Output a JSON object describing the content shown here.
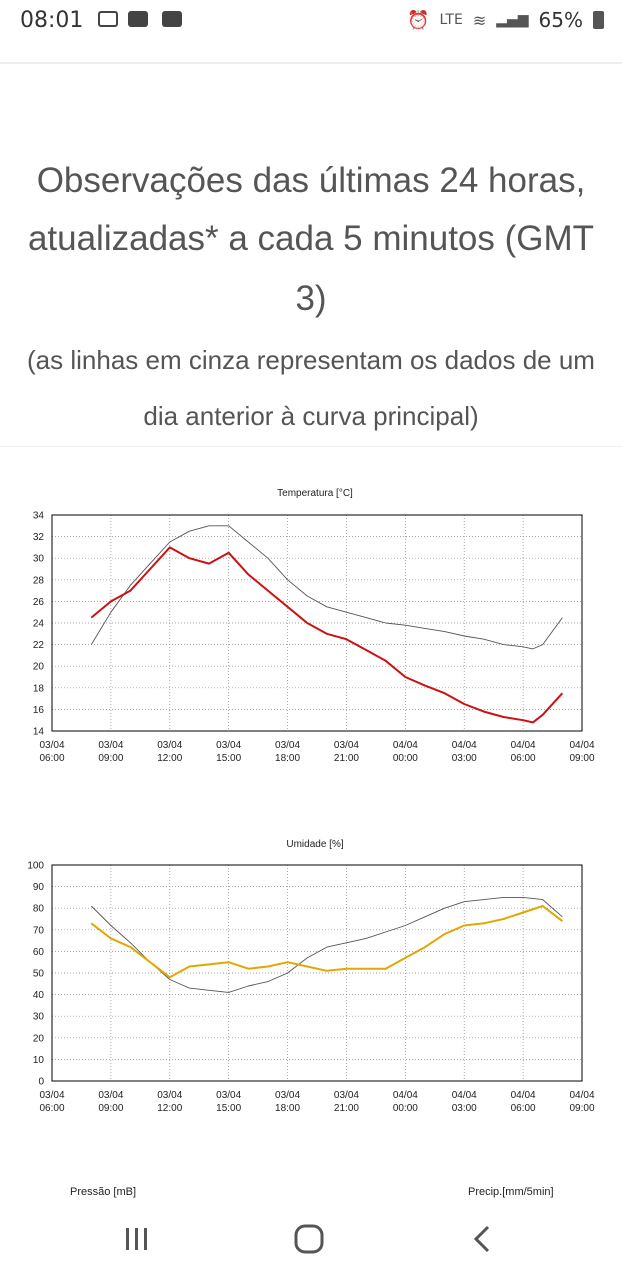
{
  "status_bar": {
    "time": "08:01",
    "lte_label": "LTE",
    "battery": "65%",
    "icons": [
      "calendar-icon",
      "youtube-icon",
      "youtube-icon",
      "alarm-icon",
      "volte-icon",
      "wifi-icon",
      "signal-icon",
      "battery-icon"
    ]
  },
  "header": {
    "title_line1": "Observações das últimas 24 horas,",
    "title_line2": "atualizadas* a cada 5 minutos (GMT",
    "title_line3": "3)",
    "note_line1": "(as linhas em cinza representam os dados de um",
    "note_line2": "dia anterior à curva principal)"
  },
  "colors": {
    "temperature": "#cc1111",
    "humidity": "#e0a800",
    "previous_day": "#555555",
    "grid": "#888888"
  },
  "x_ticks": [
    [
      "03/04",
      "06:00"
    ],
    [
      "03/04",
      "09:00"
    ],
    [
      "03/04",
      "12:00"
    ],
    [
      "03/04",
      "15:00"
    ],
    [
      "03/04",
      "18:00"
    ],
    [
      "03/04",
      "21:00"
    ],
    [
      "04/04",
      "00:00"
    ],
    [
      "04/04",
      "03:00"
    ],
    [
      "04/04",
      "06:00"
    ],
    [
      "04/04",
      "09:00"
    ]
  ],
  "chart_data": [
    {
      "type": "line",
      "title": "Temperatura [°C]",
      "ylim": [
        14,
        34
      ],
      "yticks": [
        14,
        16,
        18,
        20,
        22,
        24,
        26,
        28,
        30,
        32,
        34
      ],
      "xlim": [
        "03/04 06:00",
        "04/04 09:00"
      ],
      "grid": true,
      "series": [
        {
          "x": [
            "03/04 08:00",
            "03/04 09:00",
            "03/04 10:00",
            "03/04 11:00",
            "03/04 12:00",
            "03/04 13:00",
            "03/04 14:00",
            "03/04 15:00",
            "03/04 16:00",
            "03/04 17:00",
            "03/04 18:00",
            "03/04 19:00",
            "03/04 20:00",
            "03/04 21:00",
            "03/04 22:00",
            "03/04 23:00",
            "04/04 00:00",
            "04/04 01:00",
            "04/04 02:00",
            "04/04 03:00",
            "04/04 04:00",
            "04/04 05:00",
            "04/04 06:00",
            "04/04 06:30",
            "04/04 07:00",
            "04/04 08:00"
          ],
          "values": [
            24.5,
            26.0,
            27.0,
            29.0,
            31.0,
            30.0,
            29.5,
            30.5,
            28.5,
            27.0,
            25.5,
            24.0,
            23.0,
            22.5,
            21.5,
            20.5,
            19.0,
            18.2,
            17.5,
            16.5,
            15.8,
            15.3,
            15.0,
            14.8,
            15.5,
            17.5
          ]
        },
        {
          "x": [
            "03/04 08:00",
            "03/04 09:00",
            "03/04 10:00",
            "03/04 11:00",
            "03/04 12:00",
            "03/04 13:00",
            "03/04 14:00",
            "03/04 15:00",
            "03/04 16:00",
            "03/04 17:00",
            "03/04 18:00",
            "03/04 19:00",
            "03/04 20:00",
            "03/04 21:00",
            "03/04 22:00",
            "03/04 23:00",
            "04/04 00:00",
            "04/04 01:00",
            "04/04 02:00",
            "04/04 03:00",
            "04/04 04:00",
            "04/04 05:00",
            "04/04 06:00",
            "04/04 06:30",
            "04/04 07:00",
            "04/04 08:00"
          ],
          "values": [
            22.0,
            25.0,
            27.5,
            29.5,
            31.5,
            32.5,
            33.0,
            33.0,
            31.5,
            30.0,
            28.0,
            26.5,
            25.5,
            25.0,
            24.5,
            24.0,
            23.8,
            23.5,
            23.2,
            22.8,
            22.5,
            22.0,
            21.8,
            21.6,
            22.0,
            24.5
          ]
        }
      ]
    },
    {
      "type": "line",
      "title": "Umidade [%]",
      "ylim": [
        0,
        100
      ],
      "yticks": [
        0,
        10,
        20,
        30,
        40,
        50,
        60,
        70,
        80,
        90,
        100
      ],
      "xlim": [
        "03/04 06:00",
        "04/04 09:00"
      ],
      "grid": true,
      "series": [
        {
          "x": [
            "03/04 08:00",
            "03/04 09:00",
            "03/04 10:00",
            "03/04 11:00",
            "03/04 12:00",
            "03/04 13:00",
            "03/04 14:00",
            "03/04 15:00",
            "03/04 16:00",
            "03/04 17:00",
            "03/04 18:00",
            "03/04 19:00",
            "03/04 20:00",
            "03/04 21:00",
            "03/04 22:00",
            "03/04 23:00",
            "04/04 00:00",
            "04/04 01:00",
            "04/04 02:00",
            "04/04 03:00",
            "04/04 04:00",
            "04/04 05:00",
            "04/04 06:00",
            "04/04 07:00",
            "04/04 08:00"
          ],
          "values": [
            73,
            66,
            62,
            55,
            48,
            53,
            54,
            55,
            52,
            53,
            55,
            53,
            51,
            52,
            52,
            52,
            57,
            62,
            68,
            72,
            73,
            75,
            78,
            81,
            74
          ]
        },
        {
          "x": [
            "03/04 08:00",
            "03/04 09:00",
            "03/04 10:00",
            "03/04 11:00",
            "03/04 12:00",
            "03/04 13:00",
            "03/04 14:00",
            "03/04 15:00",
            "03/04 16:00",
            "03/04 17:00",
            "03/04 18:00",
            "03/04 19:00",
            "03/04 20:00",
            "03/04 21:00",
            "03/04 22:00",
            "03/04 23:00",
            "04/04 00:00",
            "04/04 01:00",
            "04/04 02:00",
            "04/04 03:00",
            "04/04 04:00",
            "04/04 05:00",
            "04/04 06:00",
            "04/04 07:00",
            "04/04 08:00"
          ],
          "values": [
            81,
            72,
            64,
            55,
            47,
            43,
            42,
            41,
            44,
            46,
            50,
            57,
            62,
            64,
            66,
            69,
            72,
            76,
            80,
            83,
            84,
            85,
            85,
            84,
            76
          ]
        }
      ]
    }
  ],
  "next_charts": {
    "left_title": "Pressão [mB]",
    "right_title": "Precip.[mm/5min]"
  },
  "nav": {
    "icons": [
      "recent-apps-icon",
      "home-icon",
      "back-icon"
    ]
  }
}
